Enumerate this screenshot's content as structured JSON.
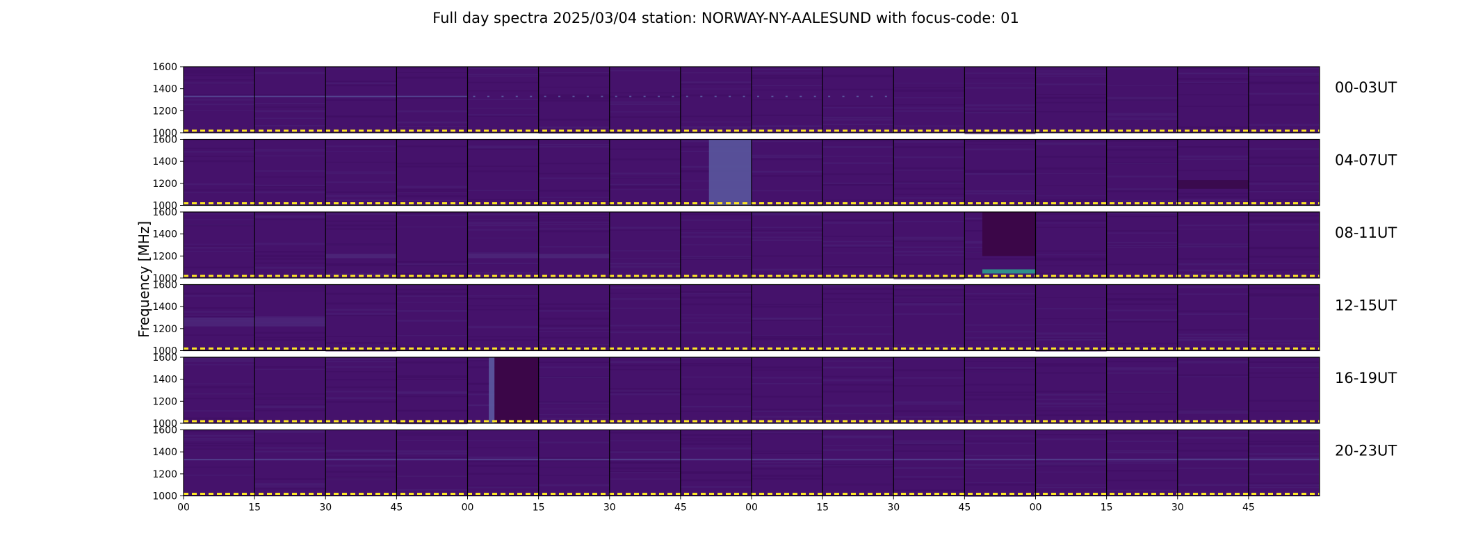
{
  "chart_data": {
    "type": "heatmap",
    "title": "Full day spectra 2025/03/04 station: NORWAY-NY-AALESUND with focus-code: 01",
    "xlabel": "",
    "ylabel": "Frequency [MHz]",
    "ylim": [
      1000,
      1600
    ],
    "yticks": [
      "1000",
      "1200",
      "1400",
      "1600"
    ],
    "xticks": [
      "00",
      "15",
      "30",
      "45",
      "00",
      "15",
      "30",
      "45",
      "00",
      "15",
      "30",
      "45",
      "00",
      "15",
      "30",
      "45"
    ],
    "rows": [
      "00-03UT",
      "04-07UT",
      "08-11UT",
      "12-15UT",
      "16-19UT",
      "20-23UT"
    ],
    "panels_per_row": 16,
    "colormap": "viridis",
    "colors": {
      "background": "#45126b",
      "rfi_line": "#5b5aa0",
      "dashed_line": "#fde725",
      "panel_border": "#000000"
    },
    "features": [
      {
        "row": 0,
        "panels": [
          0,
          1,
          2,
          3
        ],
        "kind": "line",
        "freq": 1330,
        "level": 0.35
      },
      {
        "row": 0,
        "panels": [
          4,
          5,
          6,
          7,
          8,
          9
        ],
        "kind": "dots",
        "freq": 1330,
        "level": 0.3
      },
      {
        "row": 1,
        "panels": [
          7
        ],
        "kind": "block",
        "freq": [
          1000,
          1600
        ],
        "level": 0.45,
        "offset": 0.4
      },
      {
        "row": 1,
        "panels": [
          14
        ],
        "kind": "dark_band",
        "freq": [
          1150,
          1230
        ]
      },
      {
        "row": 2,
        "panels": [
          11
        ],
        "kind": "dark_block",
        "freq": [
          1200,
          1600
        ],
        "offset": 0.25,
        "end": 1.0
      },
      {
        "row": 2,
        "panels": [
          11
        ],
        "kind": "bright_line",
        "freq": 1060,
        "offset": 0.25
      },
      {
        "row": 2,
        "panels": [
          2,
          4,
          5
        ],
        "kind": "band",
        "freq": [
          1180,
          1220
        ],
        "level": 0.3
      },
      {
        "row": 3,
        "panels": [
          0,
          1
        ],
        "kind": "band",
        "freq": [
          1220,
          1300
        ],
        "level": 0.3
      },
      {
        "row": 4,
        "panels": [
          4
        ],
        "kind": "vertical",
        "offset": 0.3,
        "level": 0.5
      },
      {
        "row": 4,
        "panels": [
          4
        ],
        "kind": "dark_block",
        "freq": [
          1000,
          1600
        ],
        "offset": 0.38,
        "end": 1.0
      },
      {
        "row": 5,
        "panels": [
          0,
          1,
          2,
          3,
          4,
          5,
          6,
          7,
          8,
          9,
          10,
          11,
          12,
          13,
          14,
          15
        ],
        "kind": "line",
        "freq": 1330,
        "level": 0.3
      }
    ]
  }
}
